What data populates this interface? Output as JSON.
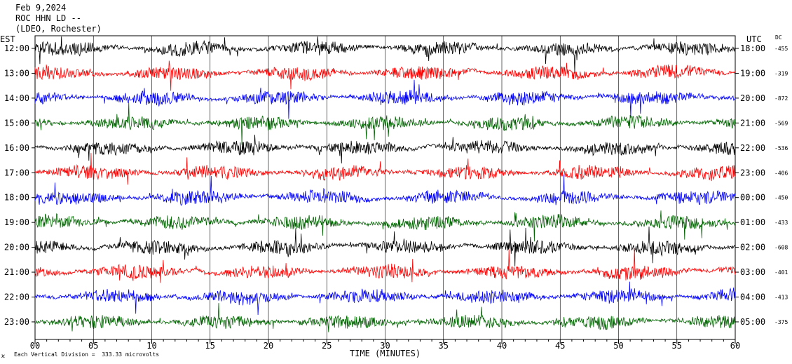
{
  "header": {
    "date": "Feb 9,2024",
    "channel": "ROC HHN LD --",
    "station": "(LDEO, Rochester)",
    "left_zone": "EST",
    "right_zone": "UTC",
    "dc_label": "DC",
    "scale_note": "Each Vertical Division =  333.33 microvolts"
  },
  "chart_data": {
    "type": "line",
    "xlabel": "TIME (MINUTES)",
    "xlim": [
      0,
      60
    ],
    "x_ticks": [
      0,
      5,
      10,
      15,
      20,
      25,
      30,
      35,
      40,
      45,
      50,
      55,
      60
    ],
    "x_tick_labels": [
      "00",
      "05",
      "10",
      "15",
      "20",
      "25",
      "30",
      "35",
      "40",
      "45",
      "50",
      "55",
      "60"
    ],
    "grid": true,
    "colors": [
      "#000000",
      "#ff0000",
      "#0000ff",
      "#006400"
    ],
    "rows": [
      {
        "est": "12:00",
        "utc": "18:00",
        "dc": "-455",
        "color": "#000000"
      },
      {
        "est": "13:00",
        "utc": "19:00",
        "dc": "-319",
        "color": "#ff0000"
      },
      {
        "est": "14:00",
        "utc": "20:00",
        "dc": "-872",
        "color": "#0000ff"
      },
      {
        "est": "15:00",
        "utc": "21:00",
        "dc": "-569",
        "color": "#006400"
      },
      {
        "est": "16:00",
        "utc": "22:00",
        "dc": "-536",
        "color": "#000000"
      },
      {
        "est": "17:00",
        "utc": "23:00",
        "dc": "-406",
        "color": "#ff0000"
      },
      {
        "est": "18:00",
        "utc": "00:00",
        "dc": "-450",
        "color": "#0000ff"
      },
      {
        "est": "19:00",
        "utc": "01:00",
        "dc": "-433",
        "color": "#006400"
      },
      {
        "est": "20:00",
        "utc": "02:00",
        "dc": "-608",
        "color": "#000000"
      },
      {
        "est": "21:00",
        "utc": "03:00",
        "dc": "-401",
        "color": "#ff0000"
      },
      {
        "est": "22:00",
        "utc": "04:00",
        "dc": "-413",
        "color": "#0000ff"
      },
      {
        "est": "23:00",
        "utc": "05:00",
        "dc": "-375",
        "color": "#006400"
      }
    ]
  }
}
